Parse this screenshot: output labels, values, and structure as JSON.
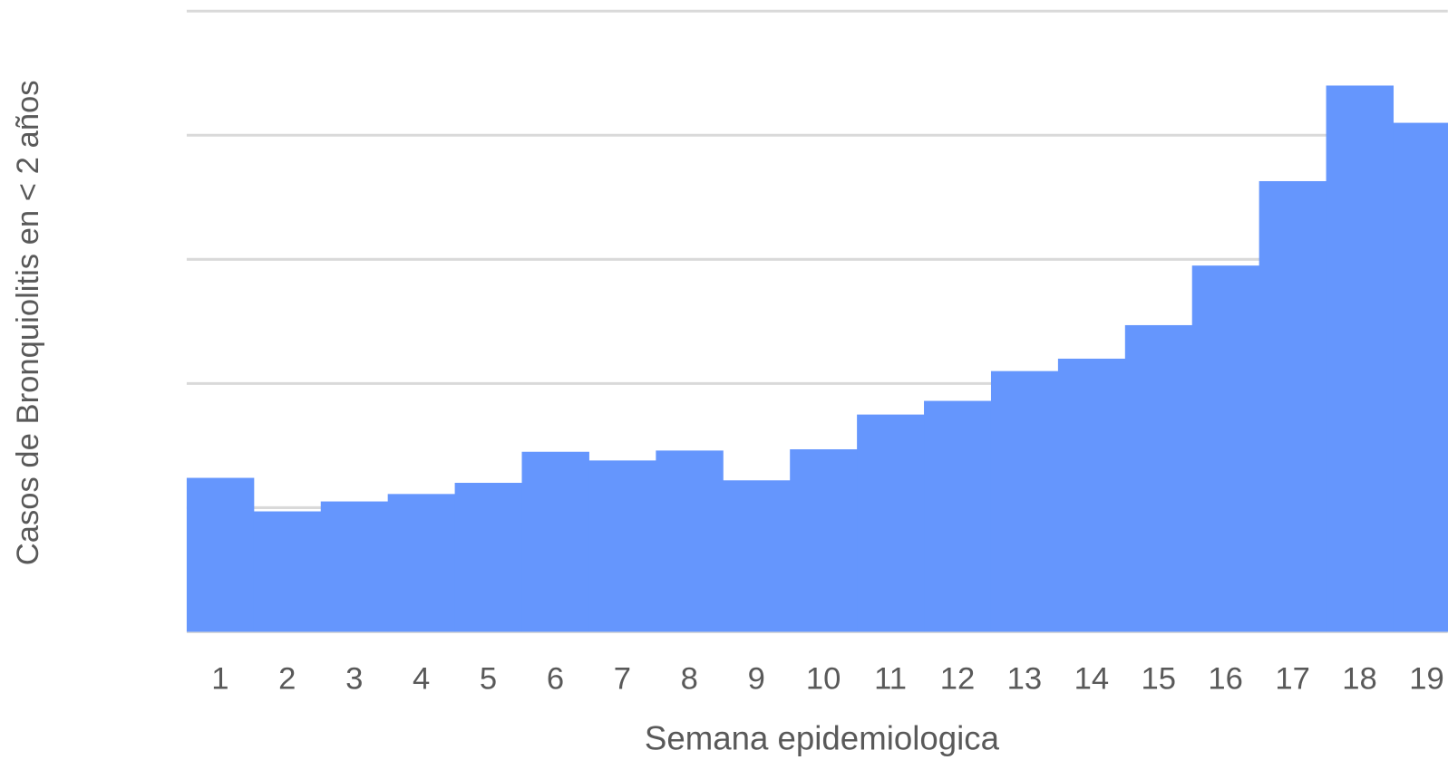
{
  "chart_data": {
    "type": "bar",
    "x_label": "Semana epidemiologica",
    "y_label": "Casos de Bronquiolitis en < 2 años",
    "categories": [
      "1",
      "2",
      "3",
      "4",
      "5",
      "6",
      "7",
      "8",
      "9",
      "10",
      "11",
      "12",
      "13",
      "14",
      "15",
      "16",
      "17",
      "18",
      "19"
    ],
    "values": [
      1.24,
      0.97,
      1.05,
      1.11,
      1.2,
      1.45,
      1.38,
      1.46,
      1.22,
      1.47,
      1.75,
      1.86,
      2.1,
      2.2,
      2.47,
      2.95,
      3.63,
      4.4,
      4.1
    ],
    "color": "#6596fd",
    "ylim": [
      0,
      5
    ],
    "yticks": [
      0,
      1,
      2,
      3,
      4,
      5
    ],
    "grid": true
  }
}
